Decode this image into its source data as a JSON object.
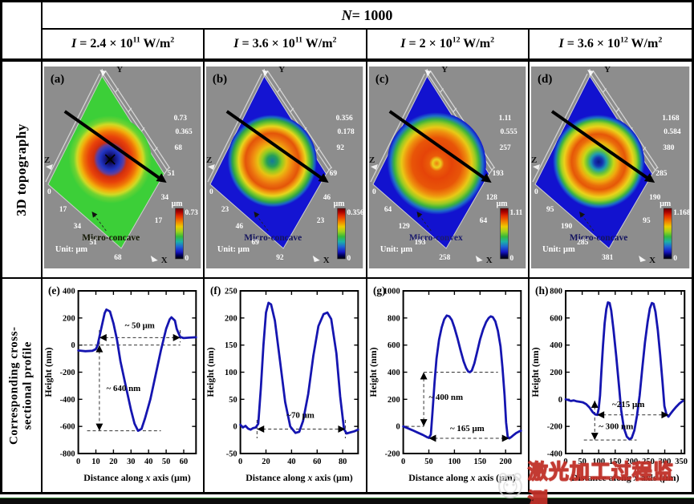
{
  "header": {
    "n": {
      "sym": "N",
      "rest": " = 1000"
    },
    "columns": [
      {
        "sym": "I",
        "pre": " = 2.4 × 10",
        "exp": "11",
        "unit": " W/m",
        "unit_exp": "2"
      },
      {
        "sym": "I",
        "pre": " = 3.6 × 10",
        "exp": "11",
        "unit": " W/m",
        "unit_exp": "2"
      },
      {
        "sym": "I",
        "pre": " = 2 × 10",
        "exp": "12",
        "unit": " W/m",
        "unit_exp": "2"
      },
      {
        "sym": "I",
        "pre": " = 3.6 × 10",
        "exp": "12",
        "unit": " W/m",
        "unit_exp": "2"
      }
    ]
  },
  "row_labels": {
    "top": "3D topography",
    "bottom_line1": "Corresponding cross-",
    "bottom_line2": "sectional profile"
  },
  "colors": {
    "topo_bg": "#8d8d8d",
    "curve": "#1515b0",
    "colorbar_stops": [
      [
        "0%",
        "#600000"
      ],
      [
        "7%",
        "#a80000"
      ],
      [
        "15%",
        "#e22c00"
      ],
      [
        "26%",
        "#f07e00"
      ],
      [
        "36%",
        "#eecb00"
      ],
      [
        "46%",
        "#9fd21c"
      ],
      [
        "56%",
        "#35b93a"
      ],
      [
        "66%",
        "#1cb2a6"
      ],
      [
        "76%",
        "#1f64d4"
      ],
      [
        "86%",
        "#1717c4"
      ],
      [
        "93%",
        "#00005e"
      ],
      [
        "100%",
        "#000000"
      ]
    ]
  },
  "topo_panels": [
    {
      "letter": "(a)",
      "feature_label": "Micro-concave",
      "label_color": "#141804",
      "plane_color": "#3ccf38",
      "center_marker": true,
      "x_axis_ticks": [
        "0",
        "17",
        "34",
        "51",
        "68"
      ],
      "y_axis_ticks": [
        "17",
        "34",
        "51",
        "68"
      ],
      "z_axis_ticks": [
        "0.365",
        "0.73"
      ],
      "axis_letters": {
        "x": "X",
        "y": "Y",
        "z": "Z"
      },
      "unit_label": "Unit: μm",
      "colorbar": {
        "unit": "μm",
        "max": "0.73",
        "min": "0"
      },
      "gradient_stops": [
        [
          "0%",
          "#000000"
        ],
        [
          "12%",
          "#13137a"
        ],
        [
          "24%",
          "#2136c4"
        ],
        [
          "33%",
          "#5e3f9e"
        ],
        [
          "40%",
          "#cf2e0e"
        ],
        [
          "52%",
          "#e8410a"
        ],
        [
          "63%",
          "#ef7307"
        ],
        [
          "72%",
          "#f2b00c"
        ],
        [
          "80%",
          "#cfda25"
        ],
        [
          "88%",
          "#6ed331"
        ],
        [
          "100%",
          "#3ccf38"
        ]
      ]
    },
    {
      "letter": "(b)",
      "feature_label": "Micro-concave",
      "label_color": "#15155e",
      "plane_color": "#1414d2",
      "center_marker": false,
      "x_axis_ticks": [
        "0",
        "23",
        "46",
        "69",
        "92"
      ],
      "y_axis_ticks": [
        "23",
        "46",
        "69",
        "92"
      ],
      "z_axis_ticks": [
        "0.178",
        "0.356"
      ],
      "axis_letters": {
        "x": "X",
        "y": "Y",
        "z": "Z"
      },
      "unit_label": "Unit: μm",
      "colorbar": {
        "unit": "μm",
        "max": "0.356",
        "min": "0"
      },
      "gradient_stops": [
        [
          "0%",
          "#15799c"
        ],
        [
          "12%",
          "#27a055"
        ],
        [
          "22%",
          "#8ecb22"
        ],
        [
          "32%",
          "#e7c212"
        ],
        [
          "42%",
          "#f09210"
        ],
        [
          "52%",
          "#ea6a0e"
        ],
        [
          "60%",
          "#e35509"
        ],
        [
          "68%",
          "#f0990f"
        ],
        [
          "75%",
          "#e7d51d"
        ],
        [
          "82%",
          "#7fc827"
        ],
        [
          "89%",
          "#2fa547"
        ],
        [
          "95%",
          "#1a64c8"
        ],
        [
          "100%",
          "#1212cf"
        ]
      ]
    },
    {
      "letter": "(c)",
      "feature_label": "Micro-convex",
      "label_color": "#1c1c6e",
      "plane_color": "#1212cf",
      "center_marker": false,
      "x_axis_ticks": [
        "0",
        "64",
        "129",
        "193",
        "258"
      ],
      "y_axis_ticks": [
        "64",
        "128",
        "193",
        "257"
      ],
      "z_axis_ticks": [
        "0.555",
        "1.11"
      ],
      "axis_letters": {
        "x": "X",
        "y": "Y",
        "z": "Z"
      },
      "unit_label": "Unit: μm",
      "colorbar": {
        "unit": "μm",
        "max": "1.11",
        "min": "0"
      },
      "gradient_stops": [
        [
          "0%",
          "#ef7d10"
        ],
        [
          "8%",
          "#ecd21e"
        ],
        [
          "15%",
          "#ea5c09"
        ],
        [
          "30%",
          "#e54408"
        ],
        [
          "50%",
          "#e85508"
        ],
        [
          "62%",
          "#ef8d0e"
        ],
        [
          "71%",
          "#e9c916"
        ],
        [
          "79%",
          "#9ccb22"
        ],
        [
          "86%",
          "#3db33d"
        ],
        [
          "93%",
          "#1e6ec9"
        ],
        [
          "100%",
          "#1212cf"
        ]
      ]
    },
    {
      "letter": "(d)",
      "feature_label": "Micro-concave",
      "label_color": "#141460",
      "plane_color": "#1212cf",
      "center_marker": false,
      "x_axis_ticks": [
        "0",
        "95",
        "190",
        "285",
        "381"
      ],
      "y_axis_ticks": [
        "95",
        "190",
        "285",
        "380"
      ],
      "z_axis_ticks": [
        "0.584",
        "1.168"
      ],
      "axis_letters": {
        "x": "X",
        "y": "Y",
        "z": "Z"
      },
      "unit_label": "Unit: μm",
      "colorbar": {
        "unit": "μm",
        "max": "1.168",
        "min": "0"
      },
      "gradient_stops": [
        [
          "0%",
          "#0c1488"
        ],
        [
          "9%",
          "#1536b2"
        ],
        [
          "17%",
          "#1e9ab0"
        ],
        [
          "25%",
          "#66c23a"
        ],
        [
          "33%",
          "#c8d816"
        ],
        [
          "42%",
          "#f0a90e"
        ],
        [
          "51%",
          "#ea6d0b"
        ],
        [
          "59%",
          "#e55708"
        ],
        [
          "67%",
          "#f0920f"
        ],
        [
          "75%",
          "#ead31a"
        ],
        [
          "82%",
          "#a6d122"
        ],
        [
          "88%",
          "#3fb441"
        ],
        [
          "94%",
          "#1a6cc9"
        ],
        [
          "100%",
          "#1212cf"
        ]
      ]
    }
  ],
  "chart_data": [
    {
      "type": "line",
      "letter": "(e)",
      "ylabel": "Height (nm)",
      "xlabel": {
        "pre": "Distance along ",
        "it": "x",
        "post": " axis (μm)"
      },
      "xlim": [
        0,
        67
      ],
      "ylim": [
        -800,
        400
      ],
      "xticks": [
        0,
        10,
        20,
        30,
        40,
        50,
        60
      ],
      "yticks": [
        400,
        200,
        0,
        -200,
        -400,
        -600,
        -800
      ],
      "points": [
        [
          0,
          -40
        ],
        [
          4,
          -45
        ],
        [
          8,
          -42
        ],
        [
          10,
          -30
        ],
        [
          11,
          0
        ],
        [
          13,
          120
        ],
        [
          15,
          235
        ],
        [
          16,
          262
        ],
        [
          18,
          248
        ],
        [
          20,
          160
        ],
        [
          22,
          40
        ],
        [
          24,
          -120
        ],
        [
          27,
          -300
        ],
        [
          30,
          -480
        ],
        [
          32,
          -580
        ],
        [
          34,
          -632
        ],
        [
          36,
          -618
        ],
        [
          38,
          -540
        ],
        [
          41,
          -400
        ],
        [
          44,
          -220
        ],
        [
          47,
          -40
        ],
        [
          50,
          120
        ],
        [
          52,
          190
        ],
        [
          53,
          205
        ],
        [
          55,
          180
        ],
        [
          56,
          120
        ],
        [
          58,
          60
        ],
        [
          60,
          52
        ],
        [
          63,
          55
        ],
        [
          67,
          58
        ]
      ],
      "annotations": [
        {
          "type": "hdash",
          "y": 0,
          "x1": 0,
          "x2": 58
        },
        {
          "type": "hdash",
          "y": -632,
          "x1": 5,
          "x2": 47
        },
        {
          "type": "vdash",
          "x": 12,
          "y1": 110,
          "y2": -10
        },
        {
          "type": "vdash",
          "x": 58,
          "y1": 110,
          "y2": 20
        },
        {
          "type": "harrow",
          "y": 55,
          "x1": 12,
          "x2": 58,
          "label": "~ 50 μm",
          "lx": 35,
          "ly": 125
        },
        {
          "type": "varrow",
          "x": 12,
          "y1": 0,
          "y2": -632,
          "label": "~ 640 nm",
          "lx": 16,
          "ly": -340,
          "anchor": "start"
        }
      ]
    },
    {
      "type": "line",
      "letter": "(f)",
      "ylabel": "Height (nm)",
      "xlabel": {
        "pre": "Distance along ",
        "it": "x",
        "post": " axis (μm)"
      },
      "xlim": [
        0,
        92
      ],
      "ylim": [
        -50,
        250
      ],
      "xticks": [
        0,
        20,
        40,
        60,
        80
      ],
      "yticks": [
        250,
        200,
        150,
        100,
        50,
        0,
        -50
      ],
      "points": [
        [
          0,
          3
        ],
        [
          2,
          -2
        ],
        [
          4,
          1
        ],
        [
          6,
          -4
        ],
        [
          8,
          -6
        ],
        [
          10,
          -3
        ],
        [
          12,
          -2
        ],
        [
          14,
          5
        ],
        [
          16,
          70
        ],
        [
          18,
          150
        ],
        [
          20,
          210
        ],
        [
          22,
          228
        ],
        [
          24,
          225
        ],
        [
          27,
          195
        ],
        [
          31,
          120
        ],
        [
          35,
          45
        ],
        [
          39,
          0
        ],
        [
          43,
          -12
        ],
        [
          46,
          -10
        ],
        [
          49,
          10
        ],
        [
          53,
          60
        ],
        [
          57,
          130
        ],
        [
          61,
          185
        ],
        [
          65,
          207
        ],
        [
          68,
          210
        ],
        [
          71,
          198
        ],
        [
          75,
          135
        ],
        [
          78,
          55
        ],
        [
          81,
          -5
        ],
        [
          83,
          -13
        ],
        [
          86,
          -11
        ],
        [
          89,
          -9
        ],
        [
          92,
          -6
        ]
      ],
      "annotations": [
        {
          "type": "vdash",
          "x": 13,
          "y1": 12,
          "y2": -22
        },
        {
          "type": "vdash",
          "x": 82,
          "y1": 12,
          "y2": -22
        },
        {
          "type": "harrow",
          "y": -5,
          "x1": 13,
          "x2": 82,
          "label": "~70 μm",
          "lx": 47,
          "ly": 16
        }
      ]
    },
    {
      "type": "line",
      "letter": "(g)",
      "ylabel": "Height (nm)",
      "xlabel": {
        "pre": "Distance along ",
        "it": "x",
        "post": " axis (μm)"
      },
      "xlim": [
        0,
        230
      ],
      "ylim": [
        -200,
        1000
      ],
      "xticks": [
        0,
        50,
        100,
        150,
        200
      ],
      "yticks": [
        1000,
        800,
        600,
        400,
        200,
        0,
        -200
      ],
      "points": [
        [
          0,
          0
        ],
        [
          8,
          -12
        ],
        [
          18,
          -28
        ],
        [
          28,
          -45
        ],
        [
          38,
          -62
        ],
        [
          46,
          -78
        ],
        [
          50,
          -85
        ],
        [
          54,
          -60
        ],
        [
          57,
          100
        ],
        [
          61,
          320
        ],
        [
          65,
          500
        ],
        [
          70,
          640
        ],
        [
          75,
          730
        ],
        [
          80,
          790
        ],
        [
          85,
          818
        ],
        [
          90,
          812
        ],
        [
          95,
          785
        ],
        [
          100,
          730
        ],
        [
          106,
          650
        ],
        [
          112,
          560
        ],
        [
          118,
          480
        ],
        [
          123,
          430
        ],
        [
          127,
          405
        ],
        [
          130,
          400
        ],
        [
          134,
          412
        ],
        [
          139,
          465
        ],
        [
          144,
          545
        ],
        [
          150,
          640
        ],
        [
          156,
          715
        ],
        [
          162,
          770
        ],
        [
          167,
          800
        ],
        [
          171,
          812
        ],
        [
          175,
          806
        ],
        [
          180,
          775
        ],
        [
          185,
          705
        ],
        [
          190,
          590
        ],
        [
          194,
          430
        ],
        [
          198,
          230
        ],
        [
          201,
          30
        ],
        [
          204,
          -75
        ],
        [
          207,
          -88
        ],
        [
          211,
          -78
        ],
        [
          216,
          -62
        ],
        [
          221,
          -48
        ],
        [
          226,
          -38
        ],
        [
          230,
          -32
        ]
      ],
      "annotations": [
        {
          "type": "hdash",
          "y": 0,
          "x1": 5,
          "x2": 40
        },
        {
          "type": "hdash",
          "y": 400,
          "x1": 40,
          "x2": 185
        },
        {
          "type": "varrow",
          "x": 40,
          "y1": 0,
          "y2": 400,
          "label": "~ 400 nm",
          "lx": 50,
          "ly": 195,
          "anchor": "start"
        },
        {
          "type": "harrow",
          "y": -88,
          "x1": 50,
          "x2": 207,
          "label": "~ 165 μm",
          "lx": 125,
          "ly": -35
        }
      ]
    },
    {
      "type": "line",
      "letter": "(h)",
      "ylabel": "Height (nm)",
      "xlabel": {
        "pre": "Distance along ",
        "it": "x",
        "post": " axis (μm)"
      },
      "xlim": [
        0,
        360
      ],
      "ylim": [
        -400,
        800
      ],
      "xticks": [
        0,
        50,
        100,
        150,
        200,
        250,
        300,
        350
      ],
      "yticks": [
        800,
        600,
        400,
        200,
        0,
        -200,
        -400
      ],
      "points": [
        [
          0,
          0
        ],
        [
          8,
          -6
        ],
        [
          16,
          -12
        ],
        [
          24,
          -8
        ],
        [
          32,
          -14
        ],
        [
          42,
          -18
        ],
        [
          52,
          -22
        ],
        [
          62,
          -35
        ],
        [
          72,
          -60
        ],
        [
          82,
          -95
        ],
        [
          90,
          -112
        ],
        [
          96,
          -115
        ],
        [
          100,
          -70
        ],
        [
          104,
          30
        ],
        [
          108,
          200
        ],
        [
          113,
          400
        ],
        [
          118,
          560
        ],
        [
          123,
          665
        ],
        [
          128,
          715
        ],
        [
          133,
          710
        ],
        [
          138,
          655
        ],
        [
          145,
          510
        ],
        [
          153,
          320
        ],
        [
          161,
          110
        ],
        [
          168,
          -80
        ],
        [
          176,
          -210
        ],
        [
          185,
          -275
        ],
        [
          193,
          -295
        ],
        [
          200,
          -285
        ],
        [
          208,
          -230
        ],
        [
          216,
          -120
        ],
        [
          224,
          30
        ],
        [
          232,
          230
        ],
        [
          240,
          420
        ],
        [
          248,
          570
        ],
        [
          255,
          670
        ],
        [
          261,
          710
        ],
        [
          266,
          705
        ],
        [
          272,
          645
        ],
        [
          279,
          510
        ],
        [
          286,
          330
        ],
        [
          293,
          130
        ],
        [
          299,
          -50
        ],
        [
          305,
          -110
        ],
        [
          311,
          -128
        ],
        [
          318,
          -105
        ],
        [
          326,
          -80
        ],
        [
          335,
          -55
        ],
        [
          345,
          -30
        ],
        [
          355,
          -12
        ]
      ],
      "annotations": [
        {
          "type": "hdash",
          "y": -300,
          "x1": 55,
          "x2": 215
        },
        {
          "type": "harrow",
          "y": -115,
          "x1": 95,
          "x2": 312,
          "label": "~215 μm",
          "lx": 190,
          "ly": -58
        },
        {
          "type": "varrow",
          "x": 88,
          "y1": -10,
          "y2": -300,
          "label": "~ 300 nm",
          "lx": 100,
          "ly": -220,
          "anchor": "start"
        }
      ]
    }
  ],
  "watermark": {
    "text": "激光加工过程监测"
  }
}
